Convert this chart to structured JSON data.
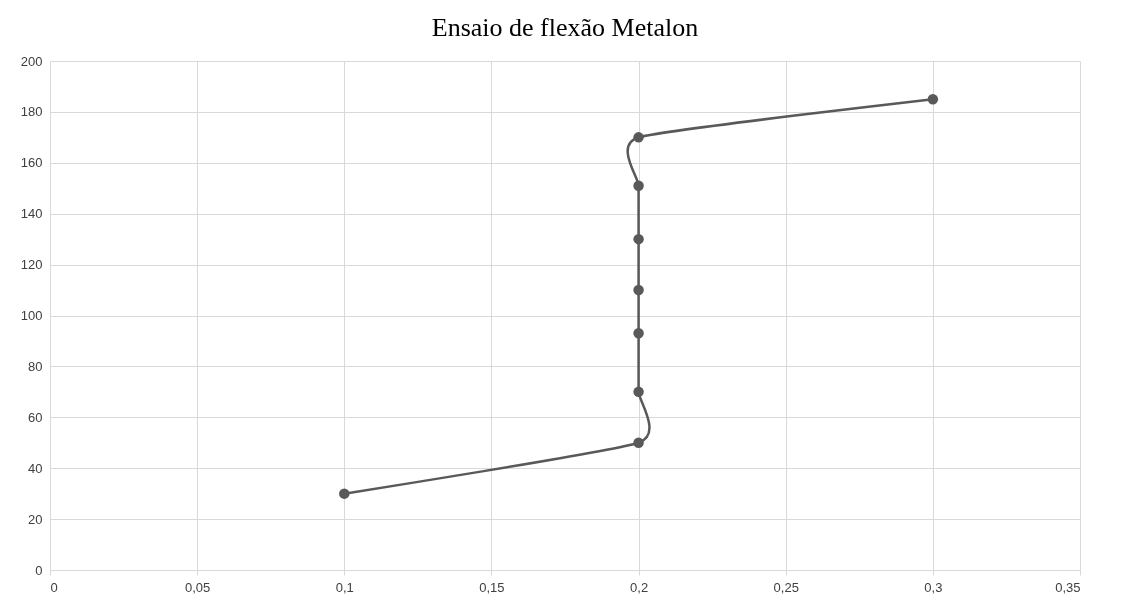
{
  "chart_data": {
    "type": "line",
    "title": "Ensaio de flexão Metalon",
    "x": [
      0.1,
      0.2,
      0.2,
      0.2,
      0.2,
      0.2,
      0.2,
      0.2,
      0.3
    ],
    "series": [
      {
        "color": "#595959",
        "values": [
          30,
          50,
          70,
          93,
          110,
          130,
          151,
          170,
          185
        ]
      }
    ],
    "xlim": [
      0,
      0.35
    ],
    "xticks": [
      0,
      {
        "value": 0.05,
        "label": "0,05"
      },
      {
        "value": 0.1,
        "label": "0,1"
      },
      {
        "value": 0.15,
        "label": "0,15"
      },
      {
        "value": 0.2,
        "label": "0,2"
      },
      {
        "value": 0.25,
        "label": "0,25"
      },
      {
        "value": 0.3,
        "label": "0,3"
      },
      {
        "value": 0.35,
        "label": "0,35"
      }
    ],
    "ylim": [
      0,
      200
    ],
    "yticks": [
      0,
      20,
      40,
      60,
      80,
      100,
      120,
      140,
      160,
      180,
      200
    ],
    "grid": true,
    "marker": "circle",
    "line_style": "solid"
  }
}
